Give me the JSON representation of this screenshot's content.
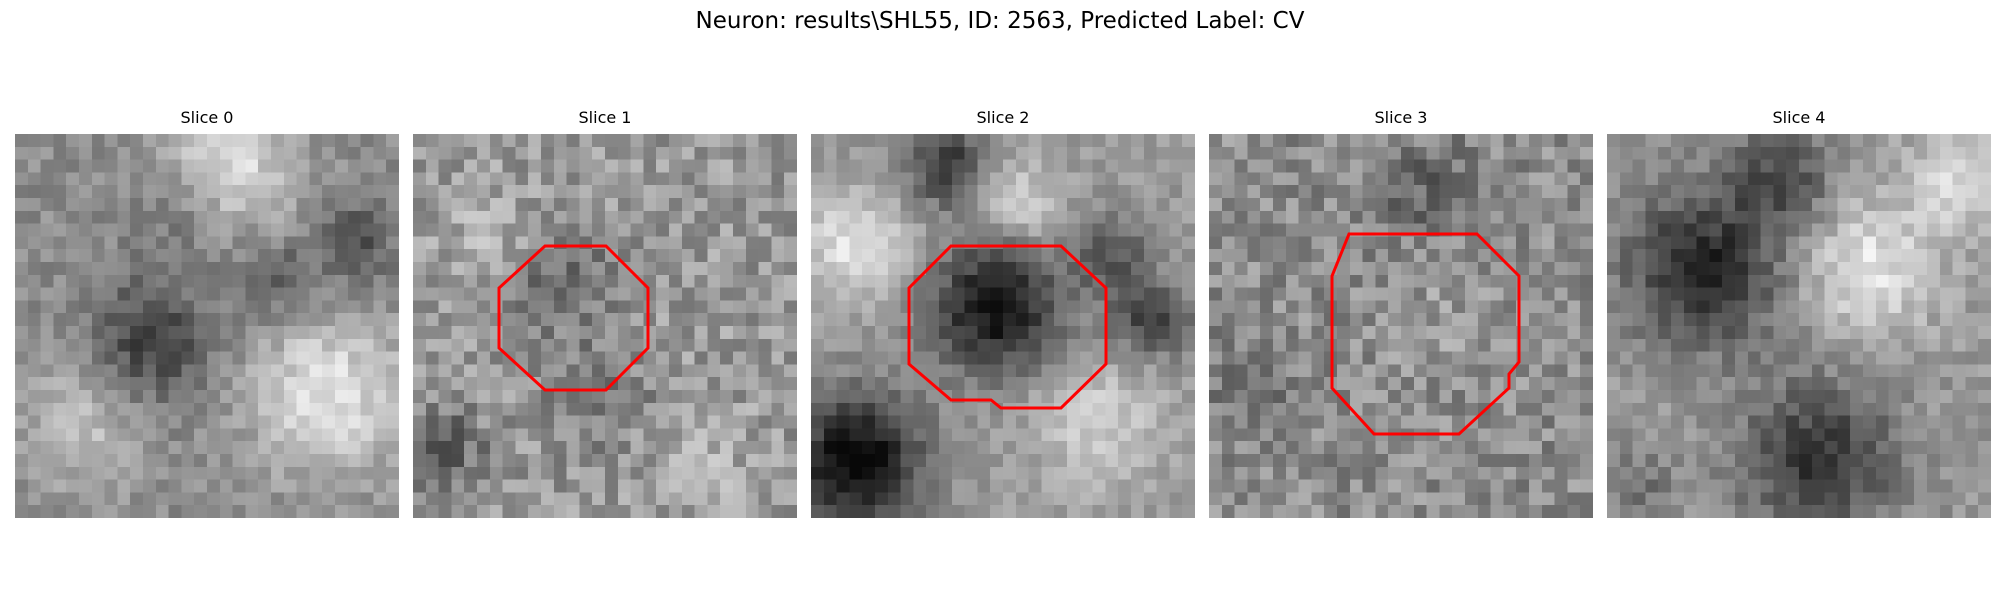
{
  "figure": {
    "title": "Neuron: results\\SHL55, ID: 2563, Predicted Label: CV"
  },
  "slices": [
    {
      "label": "Slice 0",
      "has_roi": false
    },
    {
      "label": "Slice 1",
      "has_roi": true
    },
    {
      "label": "Slice 2",
      "has_roi": true
    },
    {
      "label": "Slice 3",
      "has_roi": true
    },
    {
      "label": "Slice 4",
      "has_roi": false
    }
  ],
  "colors": {
    "roi": "#ff0000",
    "background": "#ffffff"
  }
}
